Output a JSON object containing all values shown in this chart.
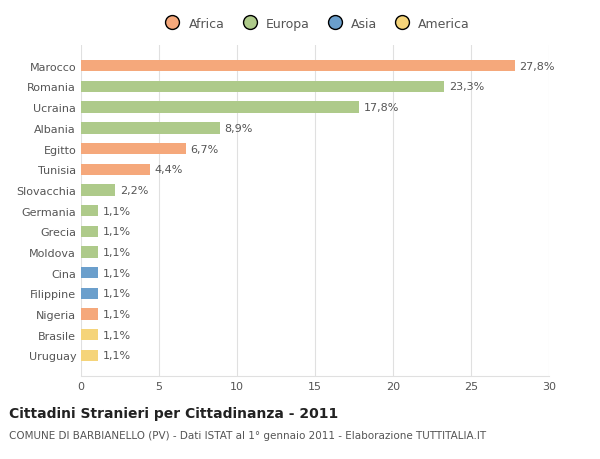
{
  "countries": [
    "Marocco",
    "Romania",
    "Ucraina",
    "Albania",
    "Egitto",
    "Tunisia",
    "Slovacchia",
    "Germania",
    "Grecia",
    "Moldova",
    "Cina",
    "Filippine",
    "Nigeria",
    "Brasile",
    "Uruguay"
  ],
  "values": [
    27.8,
    23.3,
    17.8,
    8.9,
    6.7,
    4.4,
    2.2,
    1.1,
    1.1,
    1.1,
    1.1,
    1.1,
    1.1,
    1.1,
    1.1
  ],
  "labels": [
    "27,8%",
    "23,3%",
    "17,8%",
    "8,9%",
    "6,7%",
    "4,4%",
    "2,2%",
    "1,1%",
    "1,1%",
    "1,1%",
    "1,1%",
    "1,1%",
    "1,1%",
    "1,1%",
    "1,1%"
  ],
  "continents": [
    "Africa",
    "Europa",
    "Europa",
    "Europa",
    "Africa",
    "Africa",
    "Europa",
    "Europa",
    "Europa",
    "Europa",
    "Asia",
    "Asia",
    "Africa",
    "America",
    "America"
  ],
  "continent_colors": {
    "Africa": "#F5A87B",
    "Europa": "#AECA8A",
    "Asia": "#6B9FCC",
    "America": "#F5D47A"
  },
  "legend_order": [
    "Africa",
    "Europa",
    "Asia",
    "America"
  ],
  "legend_colors": [
    "#F5A87B",
    "#AECA8A",
    "#6B9FCC",
    "#F5D47A"
  ],
  "title": "Cittadini Stranieri per Cittadinanza - 2011",
  "subtitle": "COMUNE DI BARBIANELLO (PV) - Dati ISTAT al 1° gennaio 2011 - Elaborazione TUTTITALIA.IT",
  "xlim": [
    0,
    30
  ],
  "xticks": [
    0,
    5,
    10,
    15,
    20,
    25,
    30
  ],
  "background_color": "#ffffff",
  "bar_height": 0.55,
  "grid_color": "#e0e0e0",
  "label_fontsize": 8,
  "ytick_fontsize": 8,
  "xtick_fontsize": 8,
  "title_fontsize": 10,
  "subtitle_fontsize": 7.5,
  "legend_fontsize": 9
}
